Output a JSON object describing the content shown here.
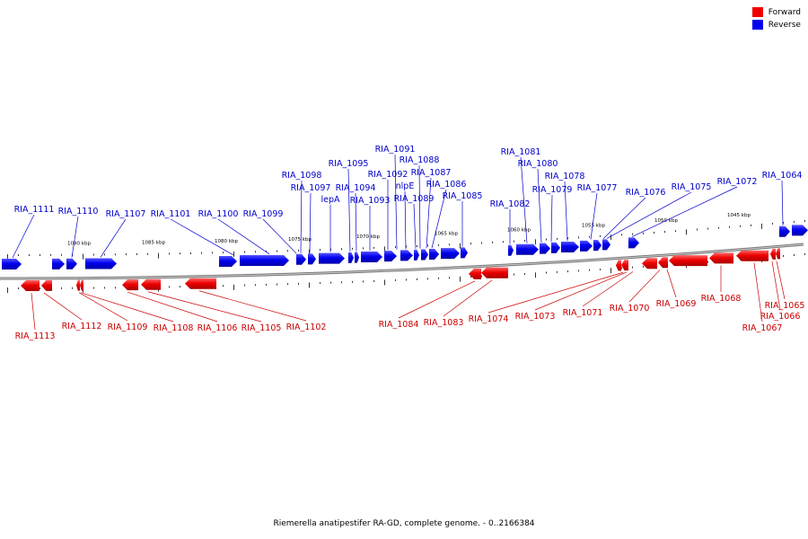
{
  "legend": [
    {
      "label": "Forward",
      "color": "#ee0000"
    },
    {
      "label": "Reverse",
      "color": "#0000ee"
    }
  ],
  "caption": "Riemerella anatipestifer RA-GD, complete genome. - 0..2166384",
  "ticks": [
    "1090 kbp",
    "1085 kbp",
    "1080 kbp",
    "1075 kbp",
    "1070 kbp",
    "1065 kbp",
    "1060 kbp",
    "1055 kbp",
    "1050 kbp",
    "1045 kbp"
  ],
  "genes_reverse": [
    {
      "name": "RIA_1111"
    },
    {
      "name": "RIA_1110"
    },
    {
      "name": "RIA_1107"
    },
    {
      "name": "RIA_1101"
    },
    {
      "name": "RIA_1100"
    },
    {
      "name": "RIA_1099"
    },
    {
      "name": "RIA_1098"
    },
    {
      "name": "RIA_1097"
    },
    {
      "name": "lepA"
    },
    {
      "name": "RIA_1095"
    },
    {
      "name": "RIA_1094"
    },
    {
      "name": "RIA_1093"
    },
    {
      "name": "RIA_1092"
    },
    {
      "name": "RIA_1091"
    },
    {
      "name": "nlpE"
    },
    {
      "name": "RIA_1089"
    },
    {
      "name": "RIA_1088"
    },
    {
      "name": "RIA_1087"
    },
    {
      "name": "RIA_1086"
    },
    {
      "name": "RIA_1085"
    },
    {
      "name": "RIA_1082"
    },
    {
      "name": "RIA_1081"
    },
    {
      "name": "RIA_1080"
    },
    {
      "name": "RIA_1079"
    },
    {
      "name": "RIA_1078"
    },
    {
      "name": "RIA_1077"
    },
    {
      "name": "RIA_1076"
    },
    {
      "name": "RIA_1075"
    },
    {
      "name": "RIA_1072"
    },
    {
      "name": "RIA_1064"
    }
  ],
  "genes_forward": [
    {
      "name": "RIA_1113"
    },
    {
      "name": "RIA_1112"
    },
    {
      "name": "RIA_1109"
    },
    {
      "name": "RIA_1108"
    },
    {
      "name": "RIA_1106"
    },
    {
      "name": "RIA_1105"
    },
    {
      "name": "RIA_1102"
    },
    {
      "name": "RIA_1084"
    },
    {
      "name": "RIA_1083"
    },
    {
      "name": "RIA_1074"
    },
    {
      "name": "RIA_1073"
    },
    {
      "name": "RIA_1071"
    },
    {
      "name": "RIA_1070"
    },
    {
      "name": "RIA_1069"
    },
    {
      "name": "RIA_1068"
    },
    {
      "name": "RIA_1067"
    },
    {
      "name": "RIA_1066"
    },
    {
      "name": "RIA_1065"
    }
  ]
}
